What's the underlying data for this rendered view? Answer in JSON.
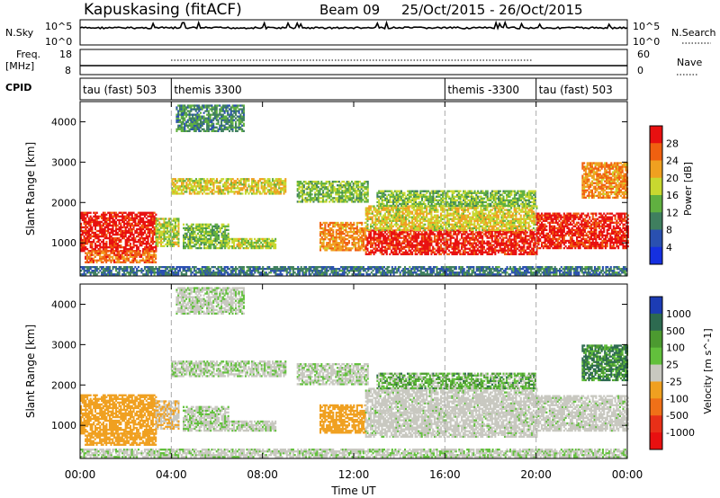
{
  "header": {
    "station": "Kapuskasing (fitACF)",
    "beam": "Beam 09",
    "dates": "25/Oct/2015 - 26/Oct/2015"
  },
  "top_panels": {
    "nsky": {
      "label": "N.Sky",
      "left_ticks": [
        "10^5",
        "10^0"
      ],
      "right_ticks": [
        "10^5",
        "10^0"
      ],
      "right_legend": "N.Search"
    },
    "freq": {
      "label_line1": "Freq.",
      "label_line2": "[MHz]",
      "left_ticks": [
        "18",
        "8"
      ],
      "right_ticks": [
        "60",
        "0"
      ],
      "right_legend": "Nave"
    },
    "cpid": {
      "label": "CPID",
      "segments": [
        "tau (fast) 503",
        "themis 3300",
        "themis -3300",
        "tau (fast) 503"
      ]
    }
  },
  "axes": {
    "ylabel": "Slant Range [km]",
    "xlabel": "Time UT",
    "yticks": [
      "1000",
      "2000",
      "3000",
      "4000"
    ],
    "xticks": [
      "00:00",
      "04:00",
      "08:00",
      "12:00",
      "16:00",
      "20:00",
      "00:00"
    ]
  },
  "colorbars": {
    "power": {
      "label": "Power [dB]",
      "ticks": [
        "4",
        "8",
        "12",
        "16",
        "20",
        "24",
        "28"
      ],
      "colors": [
        "#1530e0",
        "#2a50b0",
        "#3f7f5f",
        "#60b040",
        "#c8d830",
        "#f0a020",
        "#f06010",
        "#e81010"
      ]
    },
    "velocity": {
      "label": "Velocity [m s^-1]",
      "ticks": [
        "1000",
        "500",
        "100",
        "25",
        "-25",
        "-100",
        "-500",
        "-1000"
      ],
      "colors": [
        "#1c3cb4",
        "#2d6a50",
        "#4c9a30",
        "#62c03c",
        "#c8c8c0",
        "#f0a020",
        "#f07018",
        "#e83018",
        "#e81010"
      ]
    }
  },
  "chart_data": {
    "type": "heatmap",
    "title": "Kapuskasing (fitACF)  Beam 09  25/Oct/2015 - 26/Oct/2015",
    "xlabel": "Time UT",
    "ylabel": "Slant Range [km]",
    "x_range_hours": [
      0,
      24
    ],
    "y_range_km": [
      180,
      4500
    ],
    "cpid_segments": [
      {
        "label": "tau (fast) 503",
        "start_hour": 0,
        "end_hour": 4
      },
      {
        "label": "themis 3300",
        "start_hour": 4,
        "end_hour": 16
      },
      {
        "label": "themis -3300",
        "start_hour": 16,
        "end_hour": 20
      },
      {
        "label": "tau (fast) 503",
        "start_hour": 20,
        "end_hour": 24
      }
    ],
    "power_range_db": [
      0,
      30
    ],
    "velocity_range_ms": [
      -1000,
      1000
    ],
    "echo_regions": [
      {
        "t0": 0.0,
        "t1": 3.3,
        "r0": 780,
        "r1": 1750,
        "power_db": 28,
        "velocity": -250
      },
      {
        "t0": 0.2,
        "t1": 3.3,
        "r0": 500,
        "r1": 780,
        "power_db": 24,
        "velocity": -250
      },
      {
        "t0": 3.3,
        "t1": 4.3,
        "r0": 900,
        "r1": 1600,
        "power_db": 16,
        "velocity": -100
      },
      {
        "t0": 4.0,
        "t1": 9.0,
        "r0": 2200,
        "r1": 2600,
        "power_db": 18,
        "velocity": 0
      },
      {
        "t0": 4.5,
        "t1": 6.5,
        "r0": 850,
        "r1": 1450,
        "power_db": 14,
        "velocity": 0
      },
      {
        "t0": 6.5,
        "t1": 8.6,
        "r0": 850,
        "r1": 1100,
        "power_db": 16,
        "velocity": 0
      },
      {
        "t0": 4.2,
        "t1": 7.2,
        "r0": 3750,
        "r1": 4400,
        "power_db": 10,
        "velocity": 0
      },
      {
        "t0": 9.5,
        "t1": 12.6,
        "r0": 2000,
        "r1": 2500,
        "power_db": 14,
        "velocity": 0
      },
      {
        "t0": 10.5,
        "t1": 12.5,
        "r0": 800,
        "r1": 1500,
        "power_db": 22,
        "velocity": -200
      },
      {
        "t0": 12.5,
        "t1": 20.0,
        "r0": 700,
        "r1": 1300,
        "power_db": 28,
        "velocity": -25
      },
      {
        "t0": 12.5,
        "t1": 20.0,
        "r0": 1300,
        "r1": 1900,
        "power_db": 18,
        "velocity": -25
      },
      {
        "t0": 13.0,
        "t1": 20.0,
        "r0": 1900,
        "r1": 2300,
        "power_db": 14,
        "velocity": 50
      },
      {
        "t0": 20.0,
        "t1": 24.0,
        "r0": 850,
        "r1": 1750,
        "power_db": 28,
        "velocity": -25
      },
      {
        "t0": 22.0,
        "t1": 24.0,
        "r0": 2100,
        "r1": 3000,
        "power_db": 22,
        "velocity": 100
      },
      {
        "t0": 0.0,
        "t1": 24.0,
        "r0": 200,
        "r1": 420,
        "power_db": 8,
        "velocity": 0
      }
    ]
  }
}
